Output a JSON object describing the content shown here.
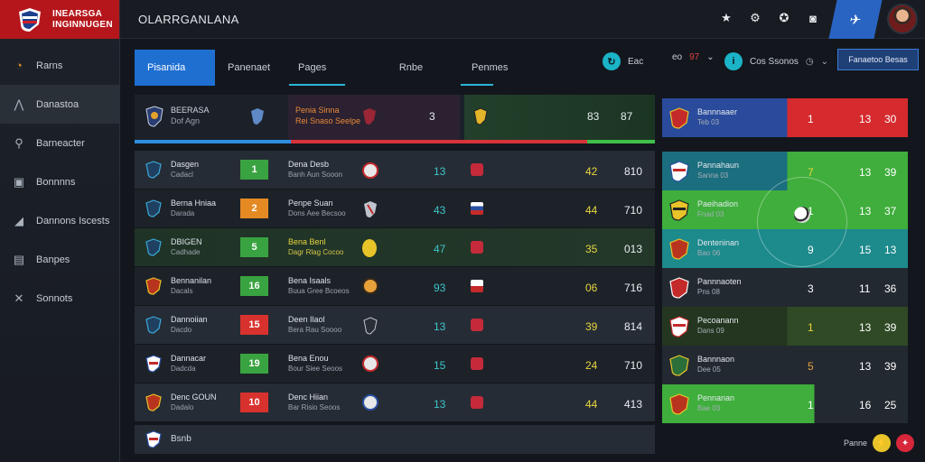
{
  "brand": {
    "line1": "INEARSGA",
    "line2": "INGINNUGEN"
  },
  "topbar": {
    "title": "OLARRGANLANA"
  },
  "sidebar": {
    "items": [
      {
        "label": "Rarns",
        "icon": "clock-icon"
      },
      {
        "label": "Danastoa",
        "icon": "chart-icon"
      },
      {
        "label": "Barneacter",
        "icon": "map-pin-icon"
      },
      {
        "label": "Bonnnns",
        "icon": "monitor-icon"
      },
      {
        "label": "Dannons Iscests",
        "icon": "chat-icon"
      },
      {
        "label": "Banpes",
        "icon": "document-icon"
      },
      {
        "label": "Sonnots",
        "icon": "tools-icon"
      }
    ]
  },
  "tabs": [
    {
      "label": "Pisanida"
    },
    {
      "label": "Panenaet"
    },
    {
      "label": "Pages"
    },
    {
      "label": "Rnbe"
    },
    {
      "label": "Penmes"
    }
  ],
  "controls": {
    "c1_label": "Eac",
    "c2_prefix": "eo",
    "c2_value": "97",
    "c3_label": "Cos Ssonos",
    "button": "Fanaetoo Besas"
  },
  "match": {
    "team_name": "BEERASA",
    "team_sub": "Dof Agn",
    "opp_name": "Penia Sinna",
    "opp_sub": "Rei Snaso Seelpe",
    "score_left": "3",
    "score_mid": "83",
    "score_right": "87"
  },
  "table": {
    "rows": [
      {
        "name": "Dasgen",
        "sub": "Cadacl",
        "score": "1",
        "score_color": "#3aa341",
        "opp": "Dena Desb",
        "opp_sub": "Banh Aun Sooon",
        "v1": "13",
        "v2": "42",
        "v3": "810"
      },
      {
        "name": "Berna Hniaa",
        "sub": "Darada",
        "score": "2",
        "score_color": "#e58a23",
        "opp": "Penpe Suan",
        "opp_sub": "Dons Aee Becsoo",
        "v1": "43",
        "v2": "44",
        "v3": "710"
      },
      {
        "name": "DBIGEN",
        "sub": "Cadhade",
        "score": "5",
        "score_color": "#3aa341",
        "opp": "Bena Benl",
        "opp_sub": "Dagr Rlag Cocoo",
        "v1": "47",
        "v2": "35",
        "v3": "013"
      },
      {
        "name": "Bennanilan",
        "sub": "Dacals",
        "score": "16",
        "score_color": "#3aa341",
        "opp": "Bena Isaals",
        "opp_sub": "Buua Gree Bcoeos",
        "v1": "93",
        "v2": "06",
        "v3": "716"
      },
      {
        "name": "Dannoiian",
        "sub": "Dacdo",
        "score": "15",
        "score_color": "#d8322f",
        "opp": "Deen Ilaol",
        "opp_sub": "Bera Rau Soooo",
        "v1": "13",
        "v2": "39",
        "v3": "814"
      },
      {
        "name": "Dannacar",
        "sub": "Dadcda",
        "score": "19",
        "score_color": "#3aa341",
        "opp": "Bena Enou",
        "opp_sub": "Bour Siee Seoos",
        "v1": "15",
        "v2": "24",
        "v3": "710"
      },
      {
        "name": "Denc GOUN",
        "sub": "Dadalo",
        "score": "10",
        "score_color": "#d8322f",
        "opp": "Denc Hiian",
        "opp_sub": "Bar Risio Seoos",
        "v1": "13",
        "v2": "44",
        "v3": "413"
      }
    ],
    "footer": "Bsnb"
  },
  "right_panel": {
    "rows": [
      {
        "name": "Bannnaaer",
        "sub": "Teb 03",
        "a": "1",
        "b": "13",
        "c": "30"
      },
      {
        "name": "Pannahaun",
        "sub": "Sanna 03",
        "a": "7",
        "b": "13",
        "c": "39"
      },
      {
        "name": "Paeihadion",
        "sub": "Fnad 03",
        "a": "1",
        "b": "13",
        "c": "37"
      },
      {
        "name": "Denteninan",
        "sub": "Bao 06",
        "a": "9",
        "b": "15",
        "c": "13"
      },
      {
        "name": "Pannnaoten",
        "sub": "Pns 08",
        "a": "3",
        "b": "11",
        "c": "36"
      },
      {
        "name": "Pecoanann",
        "sub": "Dans 09",
        "a": "1",
        "b": "13",
        "c": "39"
      },
      {
        "name": "Bannnaon",
        "sub": "Dee 05",
        "a": "5",
        "b": "13",
        "c": "39"
      },
      {
        "name": "Pennanan",
        "sub": "Bae 03",
        "a": "1",
        "b": "16",
        "c": "25"
      }
    ],
    "footer_label": "Panne"
  }
}
